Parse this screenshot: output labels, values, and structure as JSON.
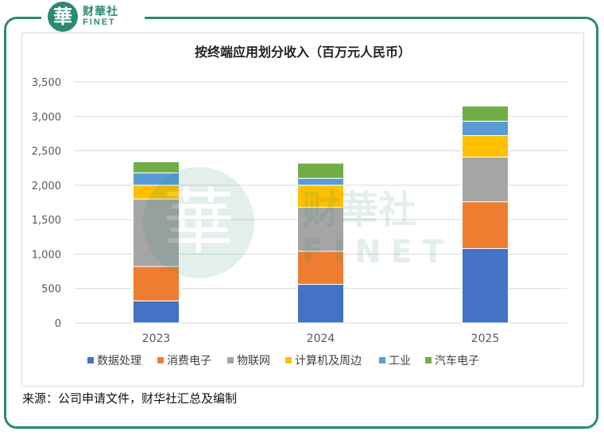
{
  "logo": {
    "glyph": "華",
    "cn": "财華社",
    "en": "FINET"
  },
  "watermark": {
    "cn": "财華社",
    "en": "FINET",
    "glyph": "華"
  },
  "source": "来源：公司申请文件，财华社汇总及编制",
  "colors": {
    "frame": "#2a8a73",
    "grid": "#d9d9d9"
  },
  "chart_data": {
    "type": "bar",
    "stacked": true,
    "title": "按终端应用划分收入（百万元人民币）",
    "categories": [
      "2023",
      "2024",
      "2025"
    ],
    "ylim": [
      0,
      3500
    ],
    "yticks": [
      0,
      500,
      1000,
      1500,
      2000,
      2500,
      3000,
      3500
    ],
    "ytick_labels": [
      "0",
      "500",
      "1,000",
      "1,500",
      "2,000",
      "2,500",
      "3,000",
      "3,500"
    ],
    "grid": true,
    "legend_position": "bottom",
    "series": [
      {
        "name": "数据处理",
        "color": "#4472c4",
        "values": [
          320,
          560,
          1080
        ]
      },
      {
        "name": "消费电子",
        "color": "#ed7d31",
        "values": [
          500,
          480,
          680
        ]
      },
      {
        "name": "物联网",
        "color": "#a5a5a5",
        "values": [
          980,
          640,
          650
        ]
      },
      {
        "name": "计算机及周边",
        "color": "#ffc000",
        "values": [
          200,
          320,
          310
        ]
      },
      {
        "name": "工业",
        "color": "#5b9bd5",
        "values": [
          180,
          100,
          210
        ]
      },
      {
        "name": "汽车电子",
        "color": "#70ad47",
        "values": [
          160,
          220,
          220
        ]
      }
    ]
  }
}
